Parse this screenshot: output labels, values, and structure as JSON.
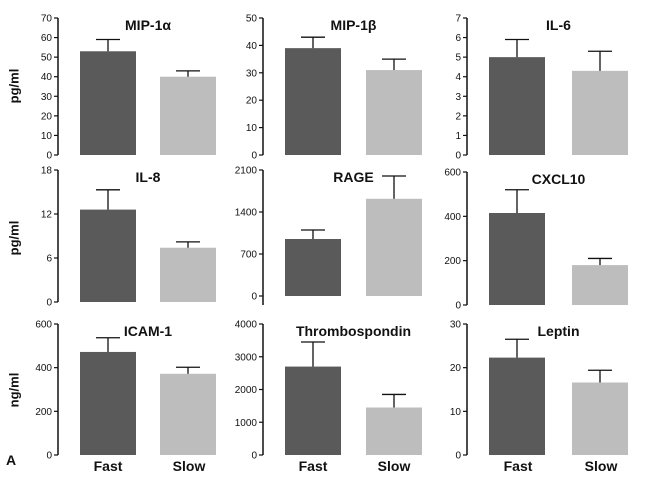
{
  "figure_label": "A",
  "categories": [
    "Fast",
    "Slow"
  ],
  "colors": {
    "fast": "#5a5a5a",
    "slow": "#bdbdbd",
    "axis": "#111111"
  },
  "row_ylabels": [
    "pg/ml",
    "pg/ml",
    "ng/ml"
  ],
  "chart_data": [
    {
      "type": "bar",
      "title": "MIP-1α",
      "categories": [
        "Fast",
        "Slow"
      ],
      "values": [
        53,
        40
      ],
      "errors": [
        6,
        3
      ],
      "ylim": [
        0,
        70
      ],
      "yticks": [
        0,
        10,
        20,
        30,
        40,
        50,
        60,
        70
      ],
      "ylabel": "pg/ml"
    },
    {
      "type": "bar",
      "title": "MIP-1β",
      "categories": [
        "Fast",
        "Slow"
      ],
      "values": [
        39,
        31
      ],
      "errors": [
        4,
        4
      ],
      "ylim": [
        0,
        50
      ],
      "yticks": [
        0,
        10,
        20,
        30,
        40,
        50
      ],
      "ylabel": ""
    },
    {
      "type": "bar",
      "title": "IL-6",
      "categories": [
        "Fast",
        "Slow"
      ],
      "values": [
        5.0,
        4.3
      ],
      "errors": [
        0.9,
        1.0
      ],
      "ylim": [
        0,
        7
      ],
      "yticks": [
        0,
        1,
        2,
        3,
        4,
        5,
        6,
        7
      ],
      "ylabel": ""
    },
    {
      "type": "bar",
      "title": "IL-8",
      "categories": [
        "Fast",
        "Slow"
      ],
      "values": [
        12.6,
        7.4
      ],
      "errors": [
        2.7,
        0.8
      ],
      "ylim": [
        0,
        18
      ],
      "yticks": [
        0,
        6,
        12,
        18
      ],
      "ylabel": "pg/ml"
    },
    {
      "type": "bar",
      "title": "RAGE",
      "categories": [
        "Fast",
        "Slow"
      ],
      "values": [
        950,
        1620
      ],
      "errors": [
        150,
        380
      ],
      "ylim": [
        -150,
        2100
      ],
      "yticks": [
        0,
        700,
        1400,
        2100
      ],
      "ylabel": ""
    },
    {
      "type": "bar",
      "title": "CXCL10",
      "categories": [
        "Fast",
        "Slow"
      ],
      "values": [
        415,
        180
      ],
      "errors": [
        105,
        30
      ],
      "ylim": [
        0,
        600
      ],
      "yticks": [
        0,
        200,
        400,
        600
      ],
      "ylabel": ""
    },
    {
      "type": "bar",
      "title": "ICAM-1",
      "categories": [
        "Fast",
        "Slow"
      ],
      "values": [
        472,
        372
      ],
      "errors": [
        65,
        30
      ],
      "ylim": [
        0,
        600
      ],
      "yticks": [
        0,
        200,
        400,
        600
      ],
      "ylabel": "ng/ml"
    },
    {
      "type": "bar",
      "title": "Thrombospondin",
      "categories": [
        "Fast",
        "Slow"
      ],
      "values": [
        2700,
        1450
      ],
      "errors": [
        750,
        400
      ],
      "ylim": [
        0,
        4000
      ],
      "yticks": [
        0,
        1000,
        2000,
        3000,
        4000
      ],
      "ylabel": ""
    },
    {
      "type": "bar",
      "title": "Leptin",
      "categories": [
        "Fast",
        "Slow"
      ],
      "values": [
        22.3,
        16.6
      ],
      "errors": [
        4.2,
        2.8
      ],
      "ylim": [
        0,
        30
      ],
      "yticks": [
        0,
        10,
        20,
        30
      ],
      "ylabel": ""
    }
  ]
}
